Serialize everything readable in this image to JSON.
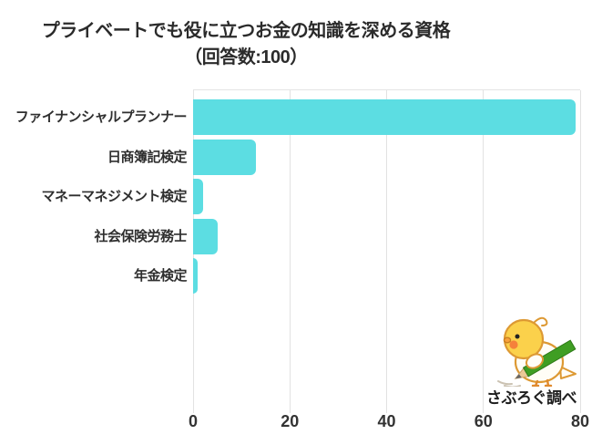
{
  "title": {
    "line1": "プライベートでも役に立つお金の知識を深める資格",
    "line2": "（回答数:100）"
  },
  "chart_data": {
    "type": "bar",
    "orientation": "horizontal",
    "title": "プライベートでも役に立つお金の知識を深める資格（回答数:100）",
    "categories": [
      "ファイナンシャルプランナー",
      "日商簿記検定",
      "マネーマネジメント検定",
      "社会保険労務士",
      "年金検定"
    ],
    "values": [
      79,
      13,
      2,
      5,
      1
    ],
    "xlabel": "",
    "ylabel": "",
    "xlim": [
      0,
      80
    ],
    "xticks": [
      0,
      20,
      40,
      60,
      80
    ],
    "grid": true,
    "legend": false,
    "bar_color": "#5CDDE2"
  },
  "watermark": {
    "label": "さぶろぐ調べ",
    "mascot": "yellow-bird-with-green-pencil"
  },
  "colors": {
    "bar": "#5CDDE2",
    "grid": "#e2e2e2",
    "title_text": "#2b2b2b",
    "label_text": "#2f2f2f"
  }
}
